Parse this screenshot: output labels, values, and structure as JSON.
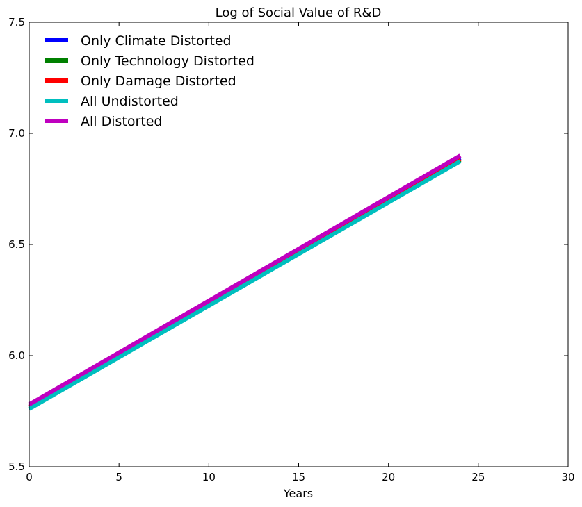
{
  "chart_data": {
    "type": "line",
    "title": "Log of Social Value of R&D",
    "xlabel": "Years",
    "ylabel": "",
    "xlim": [
      0,
      30
    ],
    "ylim": [
      5.5,
      7.5
    ],
    "xticks": [
      0,
      5,
      10,
      15,
      20,
      25,
      30
    ],
    "yticks": [
      5.5,
      6.0,
      6.5,
      7.0,
      7.5
    ],
    "xtick_labels": [
      "0",
      "5",
      "10",
      "15",
      "20",
      "25",
      "30"
    ],
    "ytick_labels": [
      "5.5",
      "6.0",
      "6.5",
      "7.0",
      "7.5"
    ],
    "grid": false,
    "legend_position": "top-left",
    "series": [
      {
        "name": "Only Climate Distorted",
        "color": "#0000ff",
        "x": [
          0,
          24
        ],
        "y": [
          5.77,
          6.89
        ]
      },
      {
        "name": "Only Technology Distorted",
        "color": "#008000",
        "x": [
          0,
          24
        ],
        "y": [
          5.765,
          6.88
        ]
      },
      {
        "name": "Only Damage Distorted",
        "color": "#ff0000",
        "x": [
          0,
          24
        ],
        "y": [
          5.77,
          6.885
        ]
      },
      {
        "name": "All Undistorted",
        "color": "#00bfbf",
        "x": [
          0,
          24
        ],
        "y": [
          5.76,
          6.875
        ]
      },
      {
        "name": "All Distorted",
        "color": "#bf00bf",
        "x": [
          0,
          24
        ],
        "y": [
          5.78,
          6.9
        ]
      }
    ]
  }
}
